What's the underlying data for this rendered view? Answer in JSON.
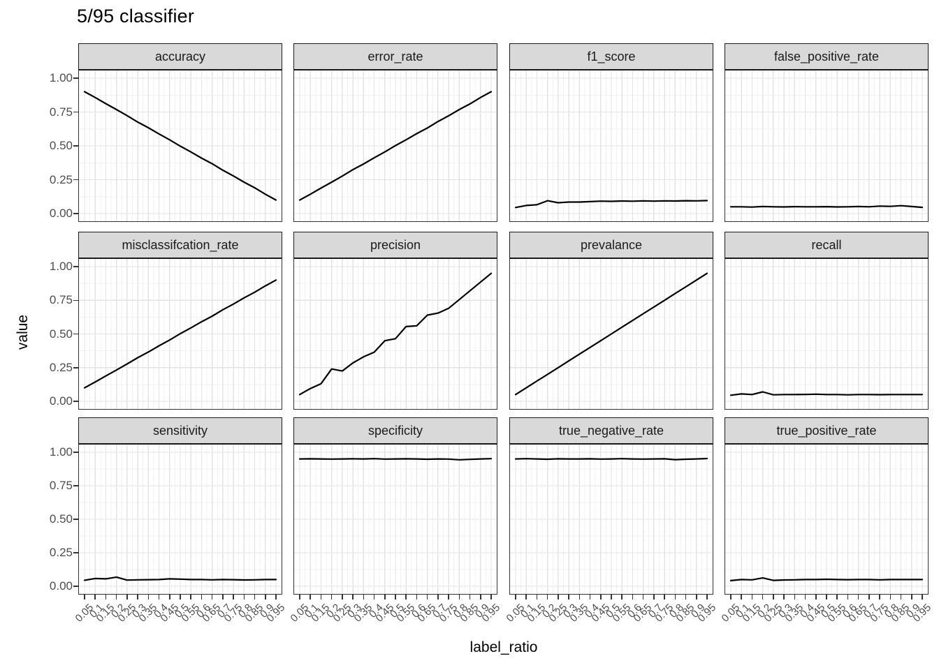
{
  "chart_data": {
    "type": "line",
    "title": "5/95 classifier",
    "xlabel": "label_ratio",
    "ylabel": "value",
    "ylim": [
      0,
      1
    ],
    "grid": "major+minor on, white panel, light gray gridlines",
    "legend_position": "none",
    "line_color": "#000000",
    "x": [
      0.05,
      0.1,
      0.15,
      0.2,
      0.25,
      0.3,
      0.35,
      0.4,
      0.45,
      0.5,
      0.55,
      0.6,
      0.65,
      0.7,
      0.75,
      0.8,
      0.85,
      0.9,
      0.95
    ],
    "x_tick_labels": [
      "0.05",
      "0.1",
      "0.15",
      "0.2",
      "0.25",
      "0.3",
      "0.35",
      "0.4",
      "0.45",
      "0.5",
      "0.55",
      "0.6",
      "0.65",
      "0.7",
      "0.75",
      "0.8",
      "0.85",
      "0.9",
      "0.95"
    ],
    "y_tick_values": [
      0,
      0.25,
      0.5,
      0.75,
      1
    ],
    "y_tick_labels": [
      "0.00",
      "0.25",
      "0.50",
      "0.75",
      "1.00"
    ],
    "facets": [
      {
        "name": "accuracy",
        "values": [
          0.9,
          0.857,
          0.812,
          0.768,
          0.723,
          0.676,
          0.634,
          0.588,
          0.545,
          0.498,
          0.455,
          0.41,
          0.368,
          0.32,
          0.278,
          0.232,
          0.19,
          0.143,
          0.1
        ]
      },
      {
        "name": "error_rate",
        "values": [
          0.1,
          0.143,
          0.188,
          0.232,
          0.277,
          0.324,
          0.366,
          0.412,
          0.455,
          0.502,
          0.545,
          0.59,
          0.632,
          0.68,
          0.722,
          0.768,
          0.81,
          0.857,
          0.9
        ]
      },
      {
        "name": "f1_score",
        "values": [
          0.045,
          0.06,
          0.065,
          0.095,
          0.08,
          0.085,
          0.085,
          0.088,
          0.092,
          0.09,
          0.093,
          0.091,
          0.094,
          0.092,
          0.094,
          0.093,
          0.095,
          0.094,
          0.096
        ]
      },
      {
        "name": "false_positive_rate",
        "values": [
          0.05,
          0.05,
          0.048,
          0.052,
          0.05,
          0.049,
          0.051,
          0.05,
          0.05,
          0.051,
          0.049,
          0.05,
          0.052,
          0.05,
          0.055,
          0.053,
          0.058,
          0.052,
          0.046
        ]
      },
      {
        "name": "misclassifcation_rate",
        "values": [
          0.1,
          0.143,
          0.188,
          0.232,
          0.277,
          0.324,
          0.366,
          0.412,
          0.455,
          0.502,
          0.545,
          0.59,
          0.632,
          0.68,
          0.722,
          0.768,
          0.81,
          0.857,
          0.9
        ]
      },
      {
        "name": "precision",
        "values": [
          0.05,
          0.095,
          0.13,
          0.24,
          0.225,
          0.285,
          0.33,
          0.365,
          0.45,
          0.465,
          0.555,
          0.56,
          0.64,
          0.655,
          0.69,
          0.755,
          0.82,
          0.885,
          0.95
        ]
      },
      {
        "name": "prevalance",
        "values": [
          0.05,
          0.1,
          0.15,
          0.2,
          0.25,
          0.3,
          0.35,
          0.4,
          0.45,
          0.5,
          0.55,
          0.6,
          0.65,
          0.7,
          0.75,
          0.8,
          0.85,
          0.9,
          0.95
        ]
      },
      {
        "name": "recall",
        "values": [
          0.045,
          0.055,
          0.05,
          0.07,
          0.048,
          0.05,
          0.05,
          0.051,
          0.053,
          0.05,
          0.05,
          0.048,
          0.05,
          0.05,
          0.049,
          0.05,
          0.05,
          0.05,
          0.05
        ]
      },
      {
        "name": "sensitivity",
        "values": [
          0.045,
          0.058,
          0.055,
          0.068,
          0.046,
          0.048,
          0.049,
          0.05,
          0.055,
          0.053,
          0.05,
          0.05,
          0.048,
          0.05,
          0.049,
          0.047,
          0.048,
          0.05,
          0.05
        ]
      },
      {
        "name": "specificity",
        "values": [
          0.95,
          0.951,
          0.95,
          0.949,
          0.95,
          0.951,
          0.95,
          0.952,
          0.949,
          0.95,
          0.951,
          0.95,
          0.948,
          0.95,
          0.949,
          0.944,
          0.947,
          0.95,
          0.952
        ]
      },
      {
        "name": "true_negative_rate",
        "values": [
          0.95,
          0.952,
          0.95,
          0.948,
          0.951,
          0.95,
          0.95,
          0.951,
          0.949,
          0.95,
          0.952,
          0.95,
          0.949,
          0.95,
          0.951,
          0.945,
          0.948,
          0.95,
          0.953
        ]
      },
      {
        "name": "true_positive_rate",
        "values": [
          0.042,
          0.05,
          0.048,
          0.062,
          0.044,
          0.047,
          0.048,
          0.05,
          0.05,
          0.052,
          0.05,
          0.049,
          0.05,
          0.05,
          0.048,
          0.05,
          0.05,
          0.05,
          0.05
        ]
      }
    ]
  },
  "colors": {
    "strip_fill": "#d9d9d9",
    "strip_border": "#1a1a1a",
    "panel_border": "#333333",
    "grid_major": "#e3e3e3",
    "grid_minor": "#f1f1f1",
    "line": "#000000",
    "tick_text": "#4d4d4d",
    "title_text": "#000000"
  }
}
